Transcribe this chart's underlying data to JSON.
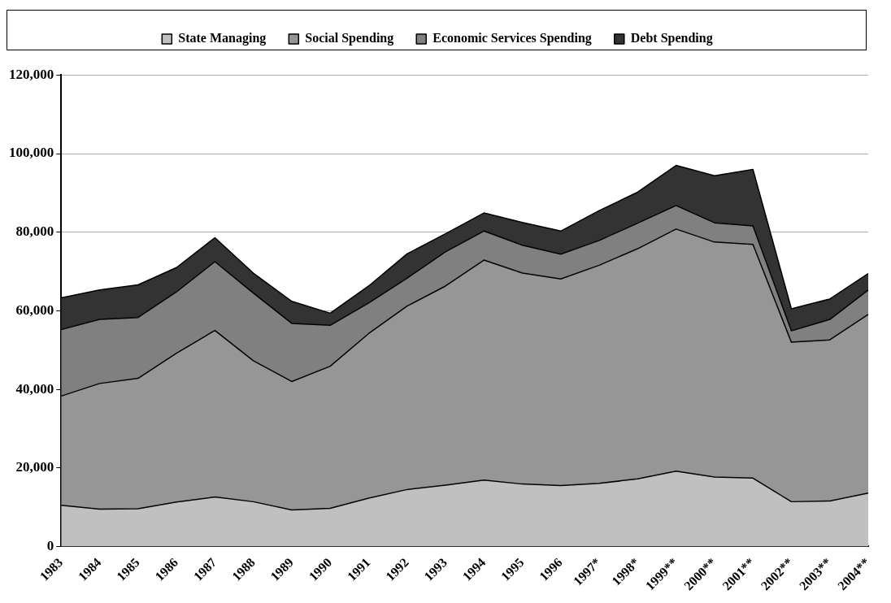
{
  "chart_data": {
    "type": "area",
    "stacked": true,
    "legend": "top",
    "grid": "y",
    "marker": "none",
    "categories": [
      "1983",
      "1984",
      "1985",
      "1986",
      "1987",
      "1988",
      "1989",
      "1990",
      "1991",
      "1992",
      "1993",
      "1994",
      "1995",
      "1996",
      "1997*",
      "1998*",
      "1999**",
      "2000**",
      "2001**",
      "2002**",
      "2003**",
      "2004**"
    ],
    "ylim": [
      0,
      120000
    ],
    "yticks": [
      0,
      {
        "value": 20000,
        "label": "20,000"
      },
      {
        "value": 40000,
        "label": "40,000"
      },
      {
        "value": 60000,
        "label": "60,000"
      },
      {
        "value": 80000,
        "label": "80,000"
      },
      {
        "value": 100000,
        "label": "100,000"
      },
      {
        "value": 120000,
        "label": "120,000"
      }
    ],
    "series": [
      {
        "name": "State Managing",
        "color": "#c0c0c0",
        "values": [
          10500,
          9500,
          9600,
          11300,
          12600,
          11400,
          9300,
          9700,
          12300,
          14500,
          15600,
          16900,
          15900,
          15500,
          16100,
          17200,
          19200,
          17700,
          17400,
          11400,
          11600,
          13600
        ]
      },
      {
        "name": "Social Spending",
        "color": "#969696",
        "values": [
          27800,
          32000,
          33200,
          37900,
          42400,
          35900,
          32700,
          36200,
          41900,
          46700,
          50700,
          56000,
          53700,
          52600,
          55500,
          58600,
          61600,
          59800,
          59500,
          40600,
          41000,
          45500
        ]
      },
      {
        "name": "Economic Services Spending",
        "color": "#808080",
        "values": [
          16900,
          16300,
          15500,
          15600,
          17500,
          17200,
          14800,
          10400,
          7800,
          7100,
          8700,
          7400,
          7100,
          6300,
          6300,
          6500,
          6000,
          4900,
          4700,
          2900,
          5200,
          6200
        ]
      },
      {
        "name": "Debt Spending",
        "color": "#333333",
        "values": [
          8100,
          7500,
          8300,
          6200,
          6100,
          5100,
          5600,
          3100,
          4300,
          6200,
          4600,
          4600,
          5800,
          5900,
          7600,
          7900,
          10200,
          12000,
          14400,
          5600,
          5200,
          4200
        ]
      }
    ]
  }
}
